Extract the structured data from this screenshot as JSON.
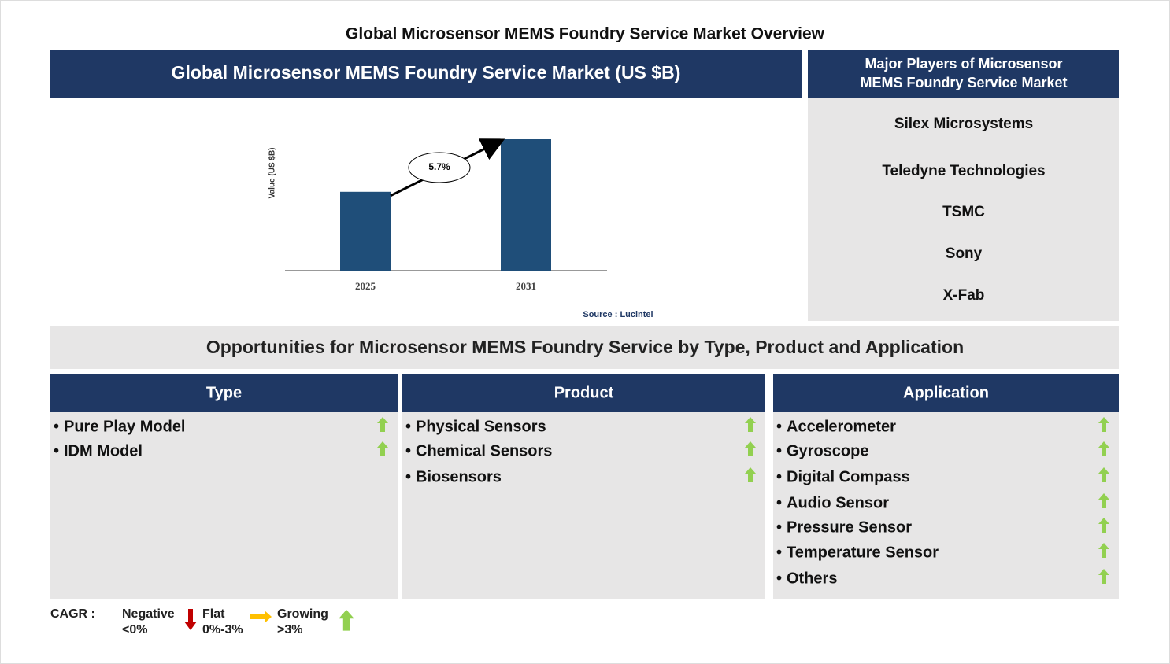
{
  "title": "Global Microsensor MEMS Foundry Service Market Overview",
  "market_panel": {
    "header": "Global Microsensor MEMS Foundry Service Market (US $B)",
    "chart_data": {
      "type": "bar",
      "y_label": "Value (US $B)",
      "categories": [
        "2025",
        "2031"
      ],
      "values": [
        1.2,
        2.0
      ],
      "color": "#1f4e79",
      "annotation": "5.7%"
    },
    "source": "Source : Lucintel"
  },
  "players_panel": {
    "header": "Major Players of Microsensor MEMS Foundry Service Market",
    "players": [
      "Silex Microsystems",
      "Teledyne Technologies",
      "TSMC",
      "Sony",
      "X-Fab"
    ]
  },
  "opportunities": {
    "title": "Opportunities for Microsensor MEMS Foundry Service by Type, Product and Application",
    "columns": [
      {
        "header": "Type",
        "items": [
          "Pure Play Model",
          "IDM Model"
        ]
      },
      {
        "header": "Product",
        "items": [
          "Physical Sensors",
          "Chemical Sensors",
          "Biosensors"
        ]
      },
      {
        "header": "Application",
        "items": [
          "Accelerometer",
          "Gyroscope",
          "Digital Compass",
          "Audio Sensor",
          "Pressure Sensor",
          "Temperature Sensor",
          "Others"
        ]
      }
    ]
  },
  "legend": {
    "label": "CAGR :",
    "negative": [
      "Negative",
      "<0%"
    ],
    "flat": [
      "Flat",
      "0%-3%"
    ],
    "growing": [
      "Growing",
      ">3%"
    ]
  }
}
